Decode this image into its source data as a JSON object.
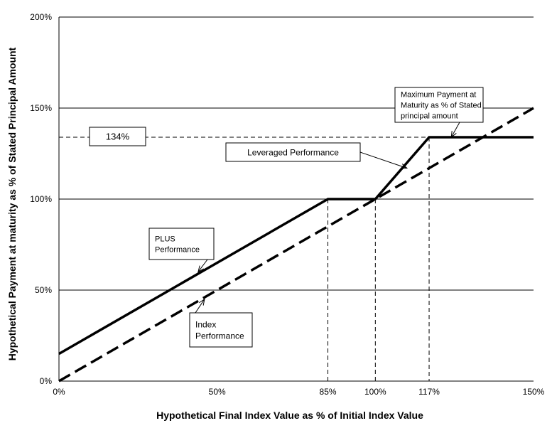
{
  "chart_data": {
    "type": "line",
    "title": "",
    "xlabel": "Hypothetical Final Index Value as % of Initial Index Value",
    "ylabel": "Hypothetical Payment at maturity as % of Stated Principal Amount",
    "xlim": [
      0,
      150
    ],
    "ylim": [
      0,
      200
    ],
    "x_ticks": [
      {
        "value": 0,
        "label": "0%"
      },
      {
        "value": 50,
        "label": "50%"
      },
      {
        "value": 85,
        "label": "85%"
      },
      {
        "value": 100,
        "label": "100%"
      },
      {
        "value": 117,
        "label": "117%"
      },
      {
        "value": 150,
        "label": "150%"
      }
    ],
    "y_ticks": [
      {
        "value": 0,
        "label": "0%"
      },
      {
        "value": 50,
        "label": "50%"
      },
      {
        "value": 100,
        "label": "100%"
      },
      {
        "value": 150,
        "label": "150%"
      },
      {
        "value": 200,
        "label": "200%"
      }
    ],
    "grid": "horizontal",
    "series": [
      {
        "style": "solid",
        "points": [
          [
            0,
            15
          ],
          [
            85,
            100
          ],
          [
            100,
            100
          ],
          [
            117,
            134
          ],
          [
            150,
            134
          ]
        ]
      },
      {
        "style": "dashed",
        "points": [
          [
            0,
            0
          ],
          [
            150,
            150
          ]
        ]
      }
    ],
    "reference_lines": [
      {
        "axis": "y",
        "value": 134,
        "x_to": 117
      },
      {
        "axis": "x",
        "value": 85,
        "y_to": 100
      },
      {
        "axis": "x",
        "value": 100,
        "y_to": 100
      },
      {
        "axis": "x",
        "value": 117,
        "y_to": 134
      }
    ],
    "annotations": [
      {
        "id": "cap",
        "lines": [
          "134%"
        ],
        "box_value": [
          7,
          134
        ],
        "font_size": 13
      },
      {
        "id": "max-payment",
        "lines": [
          "Maximum Payment at",
          "Maturity as % of Stated",
          "principal amount"
        ],
        "arrow_to": [
          124,
          134
        ],
        "font_size": 11
      },
      {
        "id": "leveraged",
        "lines": [
          "Leveraged Performance"
        ],
        "arrow_to": [
          110,
          117
        ],
        "font_size": 12
      },
      {
        "id": "plus",
        "lines": [
          "PLUS",
          "Performance"
        ],
        "arrow_to": [
          44,
          60
        ],
        "font_size": 11
      },
      {
        "id": "index",
        "lines": [
          "Index",
          "Performance"
        ],
        "arrow_to": [
          46,
          45
        ],
        "font_size": 12
      }
    ]
  }
}
